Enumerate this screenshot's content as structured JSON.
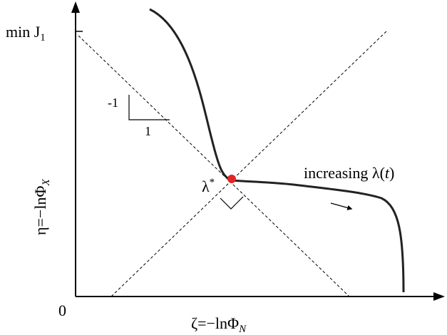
{
  "diagram": {
    "y_tick_label": "min J",
    "y_tick_subscript": "1",
    "origin_label": "0",
    "y_axis_label": "η=−lnΦ",
    "y_axis_subscript": "X",
    "x_axis_label": "ζ=−lnΦ",
    "x_axis_subscript": "N",
    "slope_rise_label": "-1",
    "slope_run_label": "1",
    "lambda_star_label": "λ",
    "lambda_star_superscript": "*",
    "curve_label_prefix": "increasing λ(",
    "curve_label_var": "t",
    "curve_label_suffix": ")",
    "colors": {
      "curve": "#222222",
      "optimum_point": "#e02525",
      "guide_lines": "#000000"
    }
  }
}
